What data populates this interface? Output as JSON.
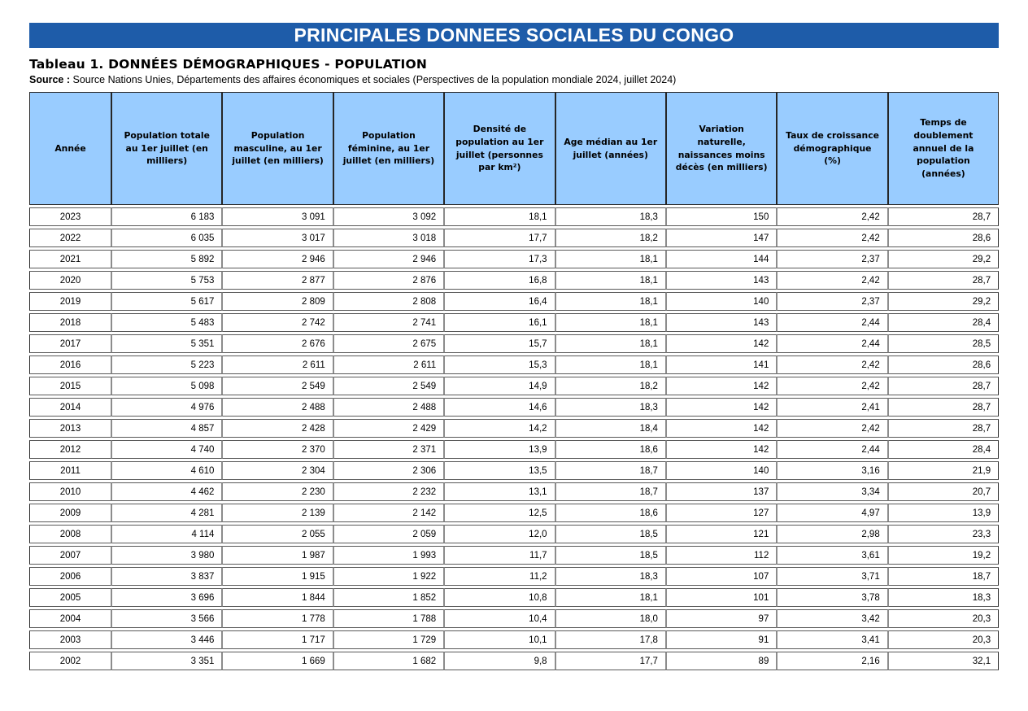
{
  "banner": {
    "title": "PRINCIPALES DONNEES SOCIALES DU CONGO",
    "bg_color": "#1E5CA9",
    "text_color": "#FFFFFF"
  },
  "table_title": "Tableau 1. DONNÉES DÉMOGRAPHIQUES - POPULATION",
  "source": {
    "label": "Source :",
    "text": " Source Nations Unies, Départements des affaires économiques et sociales (Perspectives de la population mondiale 2024, juillet 2024)"
  },
  "table": {
    "header_bg": "#99CCFF",
    "columns": [
      "Année",
      "Population totale au 1er juillet (en milliers)",
      "Population masculine, au 1er juillet (en milliers)",
      "Population féminine, au 1er juillet (en milliers)",
      "Densité de population au 1er juillet (personnes par km²)",
      "Age médian au 1er juillet (années)",
      "Variation naturelle, naissances moins décès (en milliers)",
      "Taux de croissance démographique (%)",
      "Temps de doublement annuel de la population (années)"
    ],
    "rows": [
      [
        "2023",
        "6 183",
        "3 091",
        "3 092",
        "18,1",
        "18,3",
        "150",
        "2,42",
        "28,7"
      ],
      [
        "2022",
        "6 035",
        "3 017",
        "3 018",
        "17,7",
        "18,2",
        "147",
        "2,42",
        "28,6"
      ],
      [
        "2021",
        "5 892",
        "2 946",
        "2 946",
        "17,3",
        "18,1",
        "144",
        "2,37",
        "29,2"
      ],
      [
        "2020",
        "5 753",
        "2 877",
        "2 876",
        "16,8",
        "18,1",
        "143",
        "2,42",
        "28,7"
      ],
      [
        "2019",
        "5 617",
        "2 809",
        "2 808",
        "16,4",
        "18,1",
        "140",
        "2,37",
        "29,2"
      ],
      [
        "2018",
        "5 483",
        "2 742",
        "2 741",
        "16,1",
        "18,1",
        "143",
        "2,44",
        "28,4"
      ],
      [
        "2017",
        "5 351",
        "2 676",
        "2 675",
        "15,7",
        "18,1",
        "142",
        "2,44",
        "28,5"
      ],
      [
        "2016",
        "5 223",
        "2 611",
        "2 611",
        "15,3",
        "18,1",
        "141",
        "2,42",
        "28,6"
      ],
      [
        "2015",
        "5 098",
        "2 549",
        "2 549",
        "14,9",
        "18,2",
        "142",
        "2,42",
        "28,7"
      ],
      [
        "2014",
        "4 976",
        "2 488",
        "2 488",
        "14,6",
        "18,3",
        "142",
        "2,41",
        "28,7"
      ],
      [
        "2013",
        "4 857",
        "2 428",
        "2 429",
        "14,2",
        "18,4",
        "142",
        "2,42",
        "28,7"
      ],
      [
        "2012",
        "4 740",
        "2 370",
        "2 371",
        "13,9",
        "18,6",
        "142",
        "2,44",
        "28,4"
      ],
      [
        "2011",
        "4 610",
        "2 304",
        "2 306",
        "13,5",
        "18,7",
        "140",
        "3,16",
        "21,9"
      ],
      [
        "2010",
        "4 462",
        "2 230",
        "2 232",
        "13,1",
        "18,7",
        "137",
        "3,34",
        "20,7"
      ],
      [
        "2009",
        "4 281",
        "2 139",
        "2 142",
        "12,5",
        "18,6",
        "127",
        "4,97",
        "13,9"
      ],
      [
        "2008",
        "4 114",
        "2 055",
        "2 059",
        "12,0",
        "18,5",
        "121",
        "2,98",
        "23,3"
      ],
      [
        "2007",
        "3 980",
        "1 987",
        "1 993",
        "11,7",
        "18,5",
        "112",
        "3,61",
        "19,2"
      ],
      [
        "2006",
        "3 837",
        "1 915",
        "1 922",
        "11,2",
        "18,3",
        "107",
        "3,71",
        "18,7"
      ],
      [
        "2005",
        "3 696",
        "1 844",
        "1 852",
        "10,8",
        "18,1",
        "101",
        "3,78",
        "18,3"
      ],
      [
        "2004",
        "3 566",
        "1 778",
        "1 788",
        "10,4",
        "18,0",
        "97",
        "3,42",
        "20,3"
      ],
      [
        "2003",
        "3 446",
        "1 717",
        "1 729",
        "10,1",
        "17,8",
        "91",
        "3,41",
        "20,3"
      ],
      [
        "2002",
        "3 351",
        "1 669",
        "1 682",
        "9,8",
        "17,7",
        "89",
        "2,16",
        "32,1"
      ]
    ]
  },
  "chart_data": {
    "type": "table",
    "title": "Tableau 1. DONNÉES DÉMOGRAPHIQUES - POPULATION",
    "categories": [
      2023,
      2022,
      2021,
      2020,
      2019,
      2018,
      2017,
      2016,
      2015,
      2014,
      2013,
      2012,
      2011,
      2010,
      2009,
      2008,
      2007,
      2006,
      2005,
      2004,
      2003,
      2002
    ],
    "series": [
      {
        "name": "Population totale au 1er juillet (en milliers)",
        "values": [
          6183,
          6035,
          5892,
          5753,
          5617,
          5483,
          5351,
          5223,
          5098,
          4976,
          4857,
          4740,
          4610,
          4462,
          4281,
          4114,
          3980,
          3837,
          3696,
          3566,
          3446,
          3351
        ]
      },
      {
        "name": "Population masculine, au 1er juillet (en milliers)",
        "values": [
          3091,
          3017,
          2946,
          2877,
          2809,
          2742,
          2676,
          2611,
          2549,
          2488,
          2428,
          2370,
          2304,
          2230,
          2139,
          2055,
          1987,
          1915,
          1844,
          1778,
          1717,
          1669
        ]
      },
      {
        "name": "Population féminine, au 1er juillet (en milliers)",
        "values": [
          3092,
          3018,
          2946,
          2876,
          2808,
          2741,
          2675,
          2611,
          2549,
          2488,
          2429,
          2371,
          2306,
          2232,
          2142,
          2059,
          1993,
          1922,
          1852,
          1788,
          1729,
          1682
        ]
      },
      {
        "name": "Densité de population au 1er juillet (personnes par km²)",
        "values": [
          18.1,
          17.7,
          17.3,
          16.8,
          16.4,
          16.1,
          15.7,
          15.3,
          14.9,
          14.6,
          14.2,
          13.9,
          13.5,
          13.1,
          12.5,
          12.0,
          11.7,
          11.2,
          10.8,
          10.4,
          10.1,
          9.8
        ]
      },
      {
        "name": "Age médian au 1er juillet (années)",
        "values": [
          18.3,
          18.2,
          18.1,
          18.1,
          18.1,
          18.1,
          18.1,
          18.1,
          18.2,
          18.3,
          18.4,
          18.6,
          18.7,
          18.7,
          18.6,
          18.5,
          18.5,
          18.3,
          18.1,
          18.0,
          17.8,
          17.7
        ]
      },
      {
        "name": "Variation naturelle, naissances moins décès (en milliers)",
        "values": [
          150,
          147,
          144,
          143,
          140,
          143,
          142,
          141,
          142,
          142,
          142,
          142,
          140,
          137,
          127,
          121,
          112,
          107,
          101,
          97,
          91,
          89
        ]
      },
      {
        "name": "Taux de croissance démographique (%)",
        "values": [
          2.42,
          2.42,
          2.37,
          2.42,
          2.37,
          2.44,
          2.44,
          2.42,
          2.42,
          2.41,
          2.42,
          2.44,
          3.16,
          3.34,
          4.97,
          2.98,
          3.61,
          3.71,
          3.78,
          3.42,
          3.41,
          2.16
        ]
      },
      {
        "name": "Temps de doublement annuel de la population (années)",
        "values": [
          28.7,
          28.6,
          29.2,
          28.7,
          29.2,
          28.4,
          28.5,
          28.6,
          28.7,
          28.7,
          28.7,
          28.4,
          21.9,
          20.7,
          13.9,
          23.3,
          19.2,
          18.7,
          18.3,
          20.3,
          20.3,
          32.1
        ]
      }
    ]
  }
}
